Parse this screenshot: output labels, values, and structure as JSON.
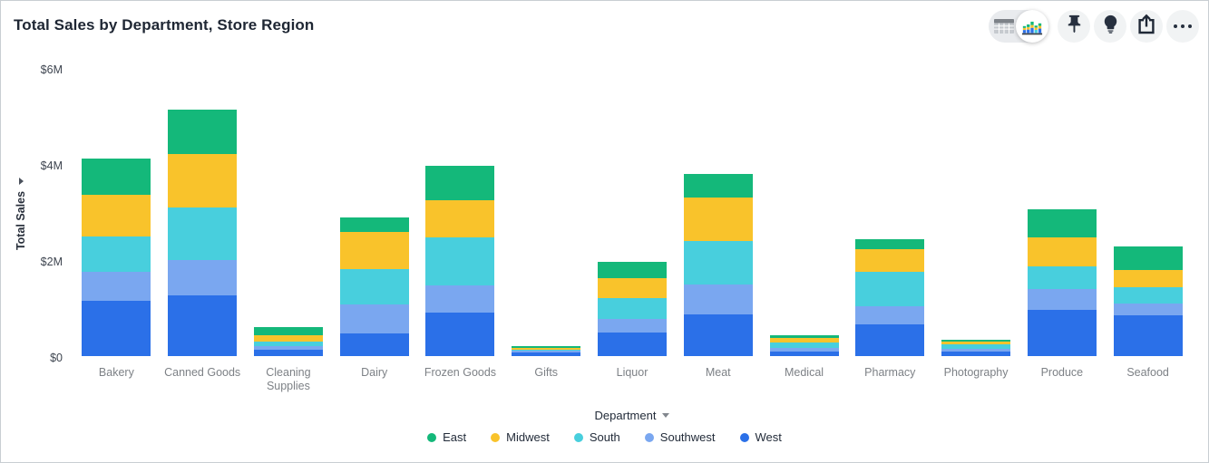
{
  "header": {
    "title": "Total Sales by Department, Store Region"
  },
  "toolbar": {
    "view_toggle": {
      "options": [
        {
          "icon": "table-view-icon",
          "selected": false
        },
        {
          "icon": "chart-view-icon",
          "selected": true
        }
      ]
    },
    "icons": [
      "pin-icon",
      "lightbulb-icon",
      "share-icon",
      "more-options-icon"
    ]
  },
  "chart_data": {
    "type": "bar",
    "stacked": true,
    "title": "Total Sales by Department, Store Region",
    "xlabel": "Department",
    "ylabel": "Total Sales",
    "ylim": [
      0,
      6
    ],
    "y_unit": "$ millions",
    "y_ticks": [
      {
        "value": 0,
        "label": "$0"
      },
      {
        "value": 2,
        "label": "$2M"
      },
      {
        "value": 4,
        "label": "$4M"
      },
      {
        "value": 6,
        "label": "$6M"
      }
    ],
    "grid": false,
    "legend_position": "bottom",
    "categories": [
      "Bakery",
      "Canned Goods",
      "Cleaning Supplies",
      "Dairy",
      "Frozen Goods",
      "Gifts",
      "Liquor",
      "Meat",
      "Medical",
      "Pharmacy",
      "Photography",
      "Produce",
      "Seafood"
    ],
    "stack_order_bottom_to_top": [
      "West",
      "Southwest",
      "South",
      "Midwest",
      "East"
    ],
    "legend_order": [
      "East",
      "Midwest",
      "South",
      "Southwest",
      "West"
    ],
    "series": [
      {
        "name": "East",
        "color": "#14b87a",
        "values": [
          0.76,
          0.94,
          0.17,
          0.3,
          0.72,
          0.03,
          0.35,
          0.48,
          0.06,
          0.21,
          0.03,
          0.58,
          0.48
        ]
      },
      {
        "name": "Midwest",
        "color": "#f9c32b",
        "values": [
          0.87,
          1.1,
          0.13,
          0.77,
          0.77,
          0.04,
          0.42,
          0.92,
          0.09,
          0.47,
          0.07,
          0.61,
          0.36
        ]
      },
      {
        "name": "South",
        "color": "#48cfdd",
        "values": [
          0.73,
          1.1,
          0.1,
          0.75,
          0.99,
          0.03,
          0.42,
          0.89,
          0.11,
          0.71,
          0.08,
          0.47,
          0.35
        ]
      },
      {
        "name": "Southwest",
        "color": "#7aa7f0",
        "values": [
          0.61,
          0.74,
          0.08,
          0.6,
          0.57,
          0.04,
          0.28,
          0.63,
          0.08,
          0.37,
          0.07,
          0.44,
          0.24
        ]
      },
      {
        "name": "West",
        "color": "#2b70e8",
        "values": [
          1.15,
          1.26,
          0.13,
          0.47,
          0.91,
          0.07,
          0.5,
          0.87,
          0.09,
          0.67,
          0.09,
          0.96,
          0.85
        ]
      }
    ],
    "totals": [
      4.12,
      5.14,
      0.61,
      2.89,
      3.96,
      0.21,
      1.97,
      3.79,
      0.43,
      2.43,
      0.34,
      3.06,
      2.28
    ]
  }
}
